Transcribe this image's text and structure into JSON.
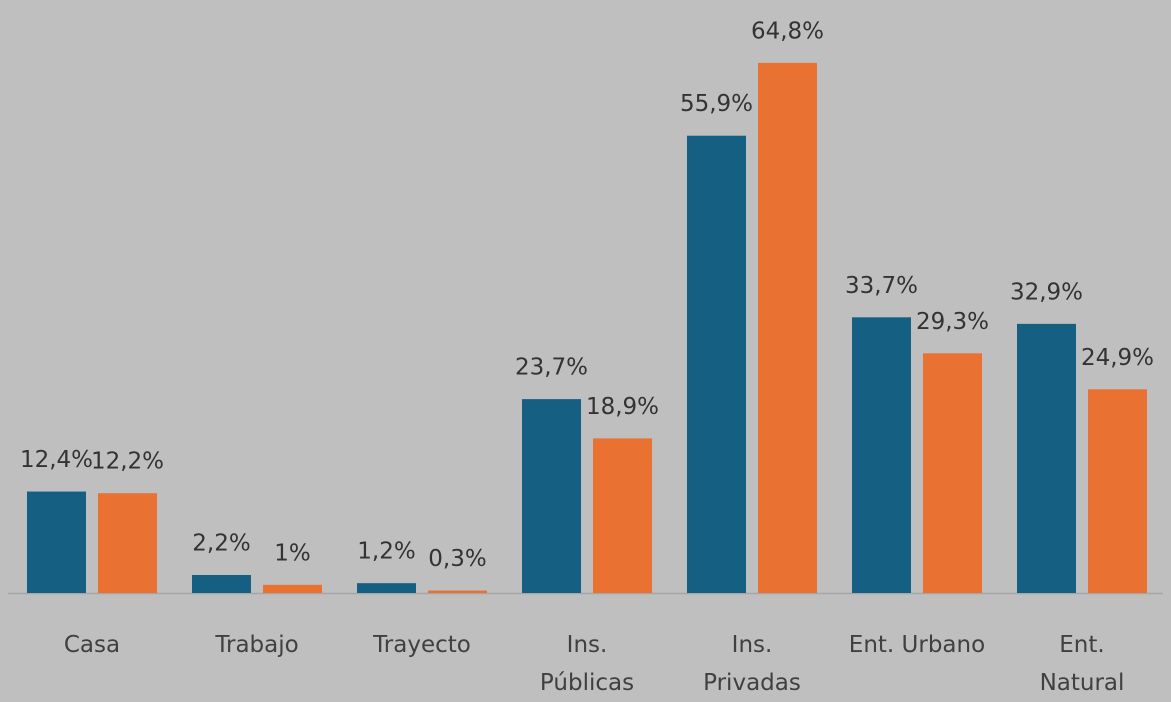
{
  "chart_data": {
    "type": "bar",
    "categories": [
      "Casa",
      "Trabajo",
      "Trayecto",
      "Ins.\nPúblicas",
      "Ins.\nPrivadas",
      "Ent. Urbano",
      "Ent.\nNatural"
    ],
    "series": [
      {
        "color": "#155f82",
        "values": [
          12.4,
          2.2,
          1.2,
          23.7,
          55.9,
          33.7,
          32.9
        ],
        "value_labels": [
          "12,4%",
          "2,2%",
          "1,2%",
          "23,7%",
          "55,9%",
          "33,7%",
          "32,9%"
        ]
      },
      {
        "color": "#e97132",
        "values": [
          12.2,
          1,
          0.3,
          18.9,
          64.8,
          29.3,
          24.9
        ],
        "value_labels": [
          "12,2%",
          "1%",
          "0,3%",
          "18,9%",
          "64,8%",
          "29,3%",
          "24,9%"
        ]
      }
    ],
    "ylim": [
      0,
      72
    ]
  }
}
